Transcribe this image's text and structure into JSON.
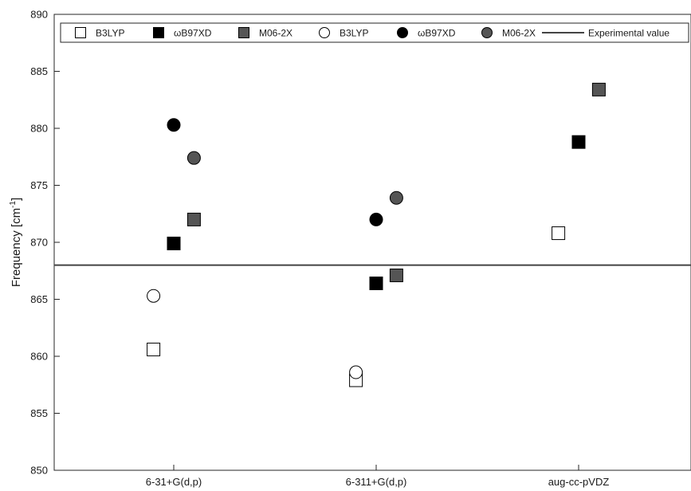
{
  "chart_data": {
    "type": "scatter",
    "title": "",
    "xlabel": "",
    "ylabel": "Frequency [cm",
    "ylabel_sup": "-1",
    "ylabel_close": "]",
    "categories": [
      "6-31+G(d,p)",
      "6-311+G(d,p)",
      "aug-cc-pVDZ"
    ],
    "ylim": [
      850,
      890
    ],
    "yticks": [
      850,
      855,
      860,
      865,
      870,
      875,
      880,
      885,
      890
    ],
    "grid": false,
    "legend_position": "top",
    "series": [
      {
        "name": "B3LYP",
        "marker": "square",
        "fill": "#ffffff",
        "offset": -0.1,
        "values": [
          860.6,
          857.9,
          870.8
        ]
      },
      {
        "name": "ωB97XD",
        "marker": "square",
        "fill": "#000000",
        "offset": 0.0,
        "values": [
          869.9,
          866.4,
          878.8
        ]
      },
      {
        "name": "M06-2X",
        "marker": "square",
        "fill": "#555555",
        "offset": 0.1,
        "values": [
          872.0,
          867.1,
          883.4
        ]
      },
      {
        "name": "B3LYP",
        "marker": "circle",
        "fill": "#ffffff",
        "offset": -0.1,
        "values": [
          865.3,
          858.6,
          null
        ]
      },
      {
        "name": "ωB97XD",
        "marker": "circle",
        "fill": "#000000",
        "offset": 0.0,
        "values": [
          880.3,
          872.0,
          null
        ]
      },
      {
        "name": "M06-2X",
        "marker": "circle",
        "fill": "#555555",
        "offset": 0.1,
        "values": [
          877.4,
          873.9,
          null
        ]
      }
    ],
    "reference_line": {
      "name": "Experimental value",
      "value": 868.0,
      "color": "#444444"
    }
  }
}
